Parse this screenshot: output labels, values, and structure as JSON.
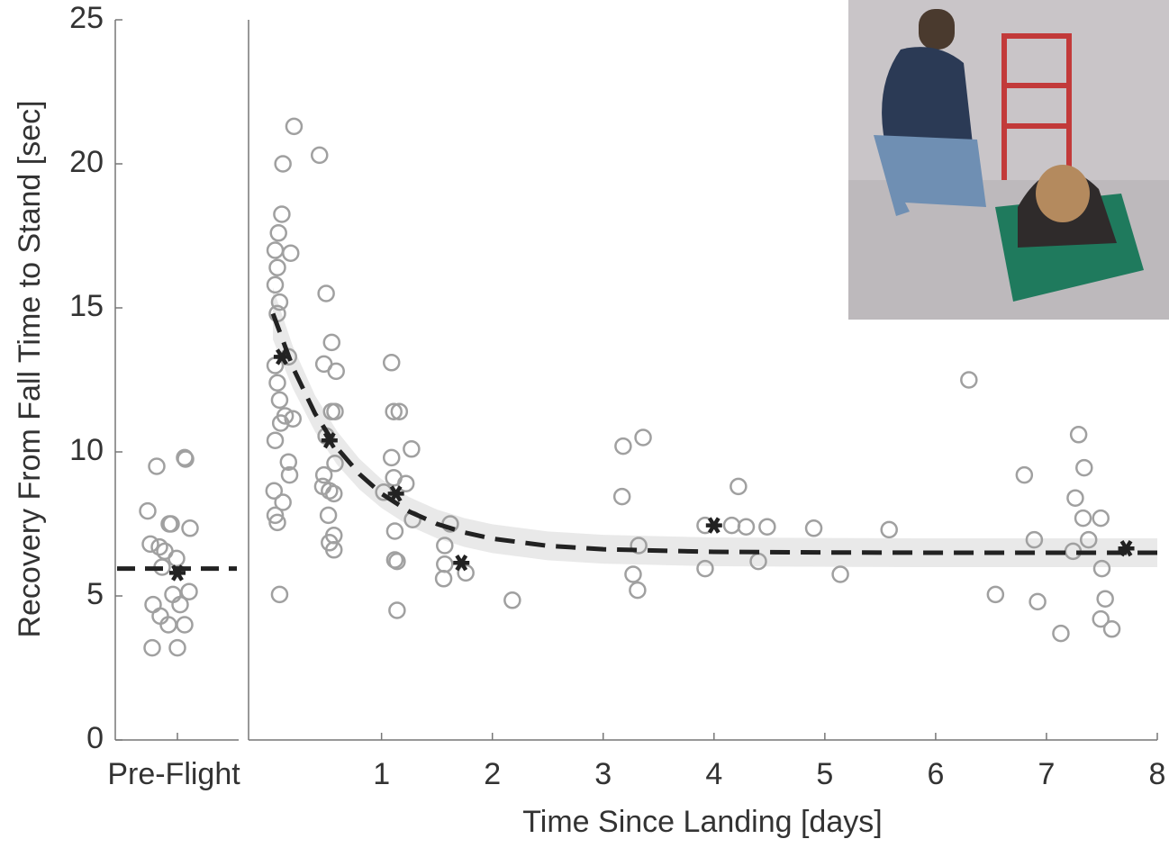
{
  "chart_data": [
    {
      "type": "strip",
      "categories": [
        "Pre-Flight"
      ],
      "ylabel": "Recovery From Fall Time to Stand [sec]",
      "ylim": [
        0,
        25
      ],
      "yticks": [
        0,
        5,
        10,
        15,
        20,
        25
      ],
      "values": [
        7.95,
        9.5,
        9.8,
        9.75,
        6.8,
        6.7,
        6.55,
        7.5,
        7.5,
        7.35,
        6.3,
        6.0,
        4.7,
        4.3,
        4.0,
        5.05,
        4.7,
        5.15,
        4.0,
        3.2,
        3.2
      ],
      "mean": 5.8,
      "fit": 5.95,
      "color": "#a0a0a0",
      "mean_color": "#222222"
    },
    {
      "type": "scatter",
      "xlabel": "Time Since Landing [days]",
      "xlim": [
        -0.2,
        8
      ],
      "xticks": [
        1,
        2,
        3,
        4,
        5,
        6,
        7,
        8
      ],
      "ylim": [
        0,
        25
      ],
      "x": [
        0.21,
        0.11,
        0.44,
        0.1,
        0.07,
        0.18,
        0.04,
        0.06,
        0.04,
        0.08,
        0.06,
        0.16,
        0.04,
        0.06,
        0.08,
        0.13,
        0.2,
        0.09,
        0.04,
        0.16,
        0.17,
        0.03,
        0.11,
        0.04,
        0.06,
        0.08,
        0.5,
        0.55,
        0.48,
        0.59,
        0.55,
        0.58,
        0.5,
        0.58,
        0.48,
        0.47,
        0.53,
        0.57,
        0.52,
        0.57,
        0.53,
        0.57,
        1.09,
        1.11,
        1.16,
        1.09,
        1.27,
        1.11,
        1.22,
        1.02,
        1.12,
        1.28,
        1.12,
        1.14,
        1.14,
        1.62,
        1.57,
        1.57,
        1.56,
        1.76,
        2.18,
        3.18,
        3.36,
        3.17,
        3.32,
        3.27,
        3.31,
        3.92,
        4.16,
        4.29,
        4.48,
        4.22,
        4.4,
        3.92,
        4.9,
        5.14,
        5.58,
        6.3,
        6.54,
        6.8,
        6.89,
        6.92,
        7.13,
        7.29,
        7.34,
        7.26,
        7.33,
        7.49,
        7.38,
        7.24,
        7.5,
        7.53,
        7.49,
        7.59
      ],
      "values": [
        21.3,
        20.0,
        20.3,
        18.25,
        17.6,
        16.9,
        17.0,
        16.4,
        15.8,
        15.2,
        14.8,
        13.3,
        13.0,
        12.4,
        11.8,
        11.25,
        11.15,
        11.0,
        10.4,
        9.65,
        9.2,
        8.65,
        8.25,
        7.8,
        7.55,
        5.05,
        15.5,
        13.8,
        13.05,
        12.8,
        11.4,
        11.4,
        10.55,
        9.6,
        9.2,
        8.8,
        8.65,
        8.55,
        7.8,
        7.1,
        6.85,
        6.6,
        13.1,
        11.4,
        11.4,
        9.8,
        10.1,
        9.1,
        8.9,
        8.6,
        7.25,
        7.65,
        6.25,
        6.2,
        4.5,
        7.5,
        6.75,
        6.1,
        5.6,
        5.8,
        4.85,
        10.2,
        10.5,
        8.45,
        6.75,
        5.75,
        5.2,
        7.45,
        7.45,
        7.4,
        7.4,
        8.8,
        6.2,
        5.95,
        7.35,
        5.75,
        7.3,
        12.5,
        5.05,
        9.2,
        6.95,
        4.8,
        3.7,
        10.6,
        9.45,
        8.4,
        7.7,
        7.7,
        6.95,
        6.55,
        5.95,
        4.9,
        4.2,
        3.85
      ],
      "means": {
        "x": [
          0.1,
          0.53,
          1.13,
          1.72,
          4.0,
          7.72
        ],
        "y": [
          13.3,
          10.4,
          8.55,
          6.15,
          7.45,
          6.65
        ]
      },
      "fit": {
        "x": [
          0.02,
          0.2,
          0.4,
          0.6,
          0.8,
          1.0,
          1.25,
          1.5,
          1.75,
          2,
          2.5,
          3,
          4,
          5,
          6,
          7,
          8
        ],
        "y": [
          14.8,
          12.93,
          11.33,
          10.13,
          9.23,
          8.55,
          7.93,
          7.5,
          7.2,
          6.99,
          6.74,
          6.62,
          6.53,
          6.51,
          6.5,
          6.5,
          6.5
        ]
      },
      "band": {
        "lower": [
          13.9,
          12.2,
          10.7,
          9.55,
          8.7,
          8.05,
          7.43,
          7.0,
          6.7,
          6.49,
          6.24,
          6.12,
          6.03,
          6.01,
          6.0,
          6.0,
          6.0
        ],
        "upper": [
          15.7,
          13.66,
          11.96,
          10.71,
          9.76,
          9.05,
          8.43,
          8.0,
          7.7,
          7.49,
          7.24,
          7.12,
          7.03,
          7.01,
          7.0,
          7.0,
          7.0
        ]
      },
      "color": "#a0a0a0",
      "mean_color": "#222222",
      "band_color": "#e9e9e9"
    }
  ]
}
